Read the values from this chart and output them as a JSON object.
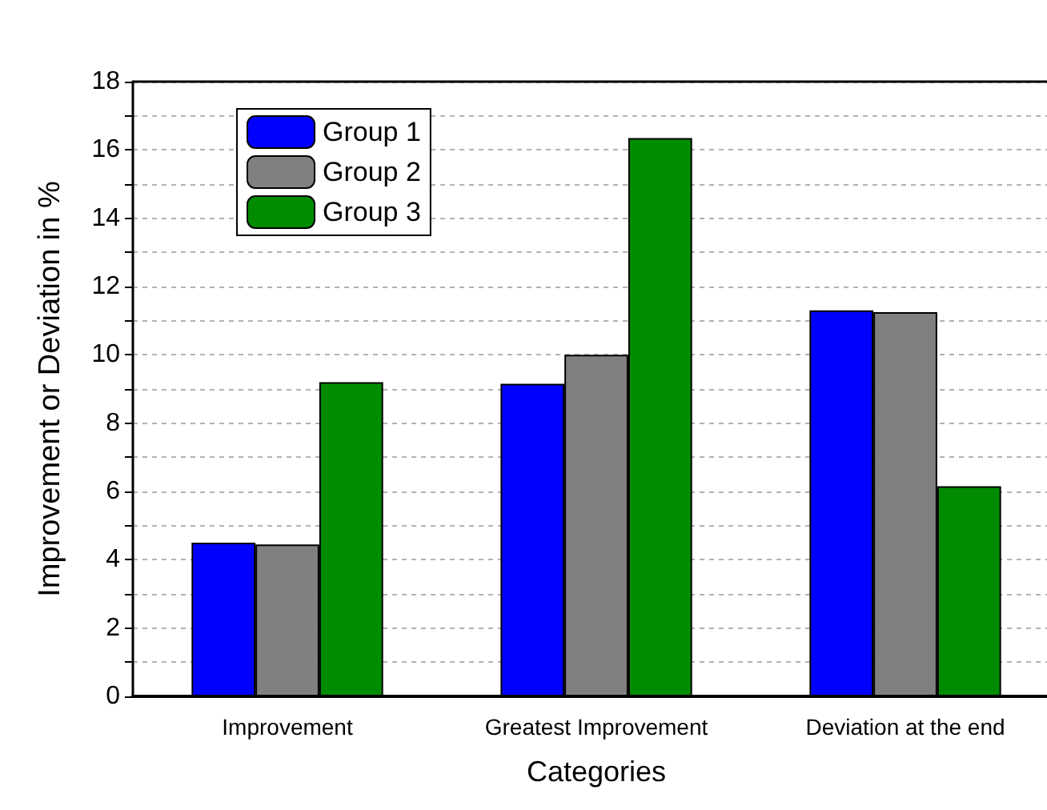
{
  "chart_data": {
    "type": "bar",
    "xlabel": "Categories",
    "ylabel": "Improvement or Deviation in %",
    "categories": [
      "Improvement",
      "Greatest Improvement",
      "Deviation at the end"
    ],
    "series": [
      {
        "name": "Group 1",
        "color": "#0000ff",
        "values": [
          4.5,
          9.15,
          11.3
        ]
      },
      {
        "name": "Group 2",
        "color": "#808080",
        "values": [
          4.45,
          10.0,
          11.25
        ]
      },
      {
        "name": "Group 3",
        "color": "#008c00",
        "values": [
          9.2,
          16.35,
          6.15
        ]
      }
    ],
    "ylim": [
      0,
      18
    ],
    "yticks": [
      0,
      {
        "value": 1,
        "label": null
      },
      2,
      {
        "value": 3,
        "label": null
      },
      4,
      {
        "value": 5,
        "label": null
      },
      6,
      {
        "value": 7,
        "label": null
      },
      8,
      {
        "value": 9,
        "label": null
      },
      10,
      {
        "value": 11,
        "label": null
      },
      12,
      {
        "value": 13,
        "label": null
      },
      14,
      {
        "value": 15,
        "label": null
      },
      16,
      {
        "value": 17,
        "label": null
      },
      18
    ],
    "grid": "y",
    "legend": "top left"
  }
}
